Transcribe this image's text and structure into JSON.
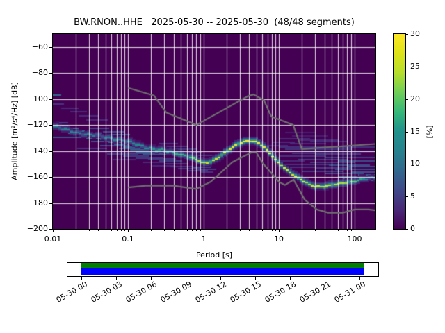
{
  "chart_data": {
    "type": "heatmap",
    "title": "BW.RNON..HHE   2025-05-30 -- 2025-05-30  (48/48 segments)",
    "station": "BW.RNON..HHE",
    "date_start": "2025-05-30",
    "date_end": "2025-05-30",
    "segments_used": 48,
    "segments_total": 48,
    "x_axis": {
      "label": "Period [s]",
      "scale": "log",
      "range": [
        0.01,
        190
      ],
      "tick_values": [
        0.01,
        0.1,
        1,
        10,
        100
      ],
      "tick_labels": [
        "0.01",
        "0.1",
        "1",
        "10",
        "100"
      ]
    },
    "y_axis": {
      "label": "Amplitude [m²/s⁴/Hz] [dB]",
      "range": [
        -200,
        -50
      ],
      "tick_values": [
        -60,
        -80,
        -100,
        -120,
        -140,
        -160,
        -180,
        -200
      ],
      "tick_labels": [
        "−60",
        "−80",
        "−100",
        "−120",
        "−140",
        "−160",
        "−180",
        "−200"
      ]
    },
    "colorbar": {
      "label": "[%]",
      "range": [
        0,
        30
      ],
      "tick_values": [
        0,
        5,
        10,
        15,
        20,
        25,
        30
      ],
      "tick_labels": [
        "0",
        "5",
        "10",
        "15",
        "20",
        "25",
        "30"
      ],
      "colormap": "viridis",
      "colormap_stops": [
        "#440154",
        "#482878",
        "#3e4989",
        "#31688e",
        "#26828e",
        "#21918c",
        "#35b779",
        "#6ece58",
        "#b5de2b",
        "#dde318",
        "#fde725"
      ]
    },
    "background_value_color": "#440154",
    "grid_color": "rgba(255,255,255,0.85)",
    "noise_model_color": "#6f6f6f",
    "noise_models": {
      "nhnm": [
        [
          0.1,
          -91.5
        ],
        [
          0.22,
          -97.4
        ],
        [
          0.32,
          -110.5
        ],
        [
          0.8,
          -120.0
        ],
        [
          3.8,
          -98.0
        ],
        [
          4.6,
          -96.5
        ],
        [
          6.3,
          -101.0
        ],
        [
          7.9,
          -113.5
        ],
        [
          15.4,
          -120.0
        ],
        [
          20.0,
          -138.5
        ],
        [
          190,
          -134.6
        ]
      ],
      "nlnm": [
        [
          0.1,
          -168.0
        ],
        [
          0.17,
          -166.7
        ],
        [
          0.4,
          -166.7
        ],
        [
          0.8,
          -169.2
        ],
        [
          1.24,
          -163.7
        ],
        [
          2.4,
          -148.6
        ],
        [
          4.3,
          -141.1
        ],
        [
          5.0,
          -141.1
        ],
        [
          6.0,
          -149.0
        ],
        [
          10.0,
          -163.8
        ],
        [
          12.0,
          -166.2
        ],
        [
          15.6,
          -162.1
        ],
        [
          21.9,
          -177.5
        ],
        [
          31.6,
          -185.0
        ],
        [
          45.0,
          -187.5
        ],
        [
          70.0,
          -187.5
        ],
        [
          101,
          -185.0
        ],
        [
          154,
          -185.0
        ],
        [
          190,
          -185.7
        ]
      ]
    },
    "mode_curve": [
      [
        0.01,
        -121.0,
        15
      ],
      [
        0.014,
        -123.5,
        13
      ],
      [
        0.02,
        -125.5,
        12
      ],
      [
        0.03,
        -127.5,
        12
      ],
      [
        0.045,
        -129.0,
        12
      ],
      [
        0.065,
        -130.5,
        13
      ],
      [
        0.09,
        -132.5,
        13
      ],
      [
        0.13,
        -135.0,
        14
      ],
      [
        0.18,
        -137.5,
        15
      ],
      [
        0.26,
        -139.5,
        16
      ],
      [
        0.37,
        -141.0,
        17
      ],
      [
        0.52,
        -143.0,
        18
      ],
      [
        0.7,
        -145.5,
        20
      ],
      [
        0.85,
        -147.5,
        23
      ],
      [
        1.0,
        -149.5,
        26
      ],
      [
        1.2,
        -148.5,
        27
      ],
      [
        1.5,
        -145.5,
        28
      ],
      [
        1.9,
        -141.5,
        29
      ],
      [
        2.4,
        -137.5,
        30
      ],
      [
        3.0,
        -134.0,
        30
      ],
      [
        3.6,
        -132.5,
        30
      ],
      [
        4.3,
        -132.0,
        30
      ],
      [
        5.2,
        -133.5,
        30
      ],
      [
        6.3,
        -137.0,
        30
      ],
      [
        7.5,
        -141.5,
        30
      ],
      [
        9.0,
        -146.5,
        29
      ],
      [
        11.0,
        -151.5,
        29
      ],
      [
        13.0,
        -155.5,
        28
      ],
      [
        16.0,
        -159.0,
        28
      ],
      [
        20.0,
        -162.5,
        28
      ],
      [
        25.0,
        -165.5,
        27
      ],
      [
        30.0,
        -167.0,
        27
      ],
      [
        38.0,
        -167.3,
        26
      ],
      [
        48.0,
        -166.6,
        25
      ],
      [
        60.0,
        -165.5,
        24
      ],
      [
        75.0,
        -164.5,
        23
      ],
      [
        95.0,
        -163.5,
        21
      ],
      [
        120,
        -162.5,
        17
      ],
      [
        150,
        -161.5,
        12
      ],
      [
        190,
        -160.5,
        9
      ]
    ],
    "density_streaks": [
      [
        0.01,
        0.013,
        -97,
        9
      ],
      [
        0.01,
        0.014,
        -104,
        4
      ],
      [
        0.013,
        0.022,
        -107,
        3
      ],
      [
        0.017,
        0.028,
        -110,
        3
      ],
      [
        0.022,
        0.04,
        -113,
        3
      ],
      [
        0.028,
        0.055,
        -116,
        3
      ],
      [
        0.01,
        0.016,
        -118.5,
        5
      ],
      [
        0.01,
        0.016,
        -120.5,
        13
      ],
      [
        0.01,
        0.022,
        -122.5,
        9
      ],
      [
        0.013,
        0.027,
        -124.5,
        9
      ],
      [
        0.016,
        0.034,
        -126.5,
        9
      ],
      [
        0.022,
        0.05,
        -128,
        8
      ],
      [
        0.03,
        0.056,
        -122.8,
        6
      ],
      [
        0.046,
        0.088,
        -125.2,
        6
      ],
      [
        0.056,
        0.105,
        -127.2,
        7
      ],
      [
        0.01,
        0.03,
        -129.5,
        7
      ],
      [
        0.028,
        0.065,
        -130,
        9
      ],
      [
        0.042,
        0.095,
        -131,
        8
      ],
      [
        0.032,
        0.075,
        -132.5,
        7
      ],
      [
        0.055,
        0.125,
        -133.5,
        8
      ],
      [
        0.065,
        0.16,
        -134.8,
        7
      ],
      [
        0.042,
        0.105,
        -136,
        6
      ],
      [
        0.085,
        0.21,
        -136.8,
        8
      ],
      [
        0.075,
        0.17,
        -138.2,
        7
      ],
      [
        0.105,
        0.27,
        -139.2,
        8
      ],
      [
        0.125,
        0.31,
        -140.6,
        7
      ],
      [
        0.095,
        0.21,
        -141.8,
        6
      ],
      [
        0.155,
        0.36,
        -142.2,
        8
      ],
      [
        0.021,
        0.052,
        -138,
        4
      ],
      [
        0.032,
        0.085,
        -140,
        4
      ],
      [
        0.052,
        0.135,
        -142.6,
        5
      ],
      [
        0.085,
        0.19,
        -144.2,
        5
      ],
      [
        0.125,
        0.29,
        -145.6,
        5
      ],
      [
        0.062,
        0.125,
        -146.8,
        3
      ],
      [
        0.185,
        0.43,
        -146.2,
        5
      ],
      [
        0.26,
        0.52,
        -147.6,
        5
      ],
      [
        0.155,
        0.31,
        -148.8,
        3
      ],
      [
        0.31,
        0.62,
        -149.8,
        4
      ],
      [
        0.21,
        0.42,
        -151.2,
        3
      ],
      [
        0.36,
        0.72,
        -152.2,
        4
      ],
      [
        0.46,
        0.92,
        -153.6,
        4
      ],
      [
        0.62,
        1.15,
        -155.2,
        4
      ],
      [
        0.26,
        0.46,
        -134.5,
        4
      ],
      [
        0.31,
        0.62,
        -136.6,
        4
      ],
      [
        0.42,
        0.82,
        -138.6,
        4
      ],
      [
        0.52,
        0.95,
        -141.2,
        4
      ],
      [
        0.72,
        1.3,
        -143.2,
        4
      ],
      [
        0.72,
        1.25,
        -152.6,
        6
      ],
      [
        0.82,
        1.45,
        -154.2,
        5
      ],
      [
        0.92,
        1.35,
        -156.2,
        4
      ],
      [
        12,
        30,
        -126,
        2
      ],
      [
        15,
        45,
        -128.5,
        2
      ],
      [
        10,
        26,
        -130.5,
        3
      ],
      [
        18,
        62,
        -131.5,
        3
      ],
      [
        26,
        82,
        -133,
        3
      ],
      [
        14,
        42,
        -134.5,
        3
      ],
      [
        8,
        16,
        -133.5,
        3
      ],
      [
        7,
        13,
        -136,
        3
      ],
      [
        10,
        190,
        -137.2,
        4
      ],
      [
        12,
        92,
        -138.6,
        4
      ],
      [
        20,
        190,
        -140.2,
        5
      ],
      [
        15,
        62,
        -141.6,
        4
      ],
      [
        30,
        122,
        -142.6,
        5
      ],
      [
        10,
        42,
        -144.2,
        4
      ],
      [
        40,
        190,
        -145.2,
        5
      ],
      [
        18,
        82,
        -146.6,
        5
      ],
      [
        60,
        190,
        -147.6,
        6
      ],
      [
        26,
        102,
        -148.6,
        5
      ],
      [
        12,
        52,
        -150.2,
        4
      ],
      [
        46,
        162,
        -150.8,
        6
      ],
      [
        82,
        190,
        -152.2,
        6
      ],
      [
        30,
        92,
        -153.2,
        5
      ],
      [
        56,
        190,
        -154.2,
        6
      ],
      [
        20,
        72,
        -155.6,
        5
      ],
      [
        92,
        190,
        -156.2,
        7
      ],
      [
        40,
        132,
        -157.2,
        6
      ],
      [
        112,
        190,
        -158.4,
        7
      ],
      [
        62,
        162,
        -159.4,
        7
      ],
      [
        132,
        190,
        -160.4,
        8
      ],
      [
        14,
        34,
        -152.6,
        4
      ],
      [
        10,
        22,
        -147.8,
        3
      ],
      [
        72,
        190,
        -161.6,
        9
      ],
      [
        102,
        190,
        -162.6,
        10
      ]
    ],
    "timeline": {
      "tick_hours": [
        0,
        3,
        6,
        9,
        12,
        15,
        18,
        21,
        24
      ],
      "tick_labels": [
        "05-30 00",
        "05-30 03",
        "05-30 06",
        "05-30 09",
        "05-30 12",
        "05-30 15",
        "05-30 18",
        "05-30 21",
        "05-31 00"
      ],
      "bar_start_h": 0,
      "bar_end_h": 24.35,
      "bar_top_color": "#008000",
      "bar_bottom_color": "#0000ff"
    }
  }
}
